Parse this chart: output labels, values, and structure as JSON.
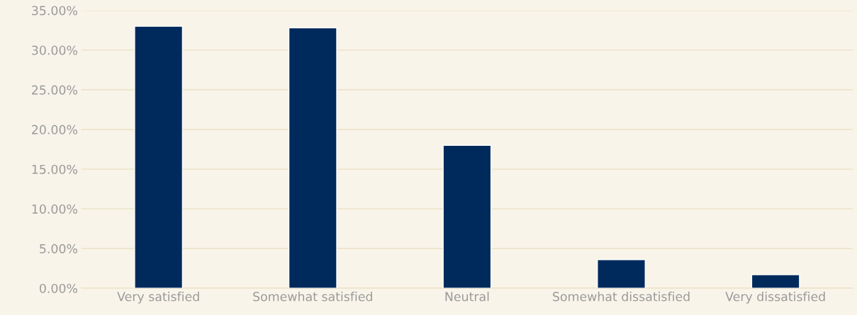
{
  "chart_data": {
    "type": "bar",
    "categories": [
      "Very satisfied",
      "Somewhat satisfied",
      "Neutral",
      "Somewhat dissatisfied",
      "Very dissatisfied"
    ],
    "values": [
      33.0,
      32.8,
      18.0,
      3.6,
      1.7
    ],
    "color": "#002a5c",
    "ylim": [
      0,
      35
    ],
    "yticks": [
      {
        "value": 0,
        "label": "0.00%"
      },
      {
        "value": 5,
        "label": "5.00%"
      },
      {
        "value": 10,
        "label": "10.00%"
      },
      {
        "value": 15,
        "label": "15.00%"
      },
      {
        "value": 20,
        "label": "20.00%"
      },
      {
        "value": 25,
        "label": "25.00%"
      },
      {
        "value": 30,
        "label": "30.00%"
      },
      {
        "value": 35,
        "label": "35.00%"
      }
    ],
    "grid": "y",
    "legend": false
  }
}
